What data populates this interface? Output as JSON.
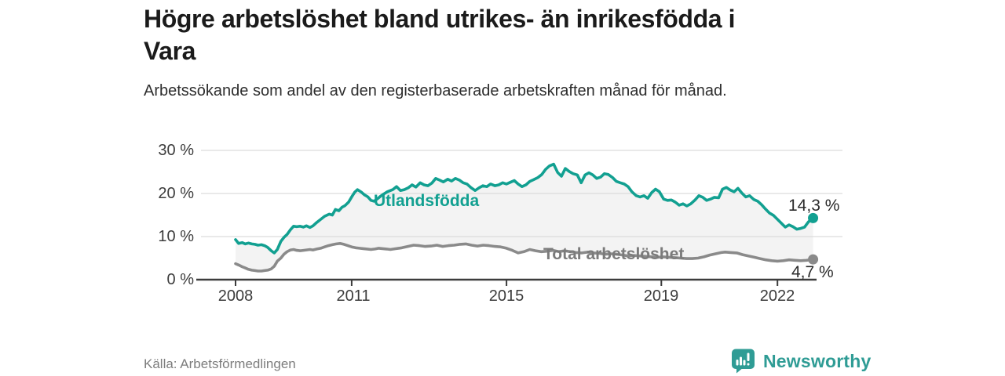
{
  "footer": {
    "source": "Källa: Arbetsförmedlingen"
  },
  "logo": {
    "text": "Newsworthy",
    "color": "#2F9C95",
    "icon": "newsworthy-badge-bar-chart-icon"
  },
  "chart_data": {
    "type": "line",
    "title": "Högre arbetslöshet bland utrikes- än inrikesfödda i Vara",
    "subtitle": "Arbetssökande som andel av den registerbaserade arbetskraften månad för månad.",
    "unit": "%",
    "grid": true,
    "legend_position": "inline-on-lines",
    "colors": {
      "fill_between": "#F3F3F3",
      "grid": "#DCDCDC",
      "axis": "#3C3C3C"
    },
    "x_axis": {
      "range": [
        2008,
        2023
      ],
      "ticks": [
        {
          "label": "2008",
          "value": 2008
        },
        {
          "label": "2011",
          "value": 2011
        },
        {
          "label": "2015",
          "value": 2015
        },
        {
          "label": "2019",
          "value": 2019
        },
        {
          "label": "2022",
          "value": 2022
        }
      ]
    },
    "y_axis": {
      "range": [
        0,
        30
      ],
      "ticks": [
        {
          "label": "30 %",
          "value": 30
        },
        {
          "label": "20 %",
          "value": 20
        },
        {
          "label": "10 %",
          "value": 10
        },
        {
          "label": "0 %",
          "value": 0
        }
      ]
    },
    "series": [
      {
        "name": "Utlandsfödda",
        "color": "#12A091",
        "end_label": "14,3 %",
        "end_value": 14.3,
        "points": [
          [
            2008.0,
            9.3
          ],
          [
            2008.08,
            8.4
          ],
          [
            2008.17,
            8.6
          ],
          [
            2008.25,
            8.3
          ],
          [
            2008.33,
            8.5
          ],
          [
            2008.42,
            8.3
          ],
          [
            2008.5,
            8.2
          ],
          [
            2008.58,
            8.0
          ],
          [
            2008.67,
            8.1
          ],
          [
            2008.75,
            7.9
          ],
          [
            2008.83,
            7.5
          ],
          [
            2008.92,
            6.7
          ],
          [
            2009.0,
            6.2
          ],
          [
            2009.08,
            7.0
          ],
          [
            2009.17,
            8.9
          ],
          [
            2009.25,
            9.8
          ],
          [
            2009.33,
            10.5
          ],
          [
            2009.42,
            11.6
          ],
          [
            2009.5,
            12.4
          ],
          [
            2009.58,
            12.3
          ],
          [
            2009.67,
            12.4
          ],
          [
            2009.75,
            12.2
          ],
          [
            2009.83,
            12.5
          ],
          [
            2009.92,
            12.1
          ],
          [
            2010.0,
            12.5
          ],
          [
            2010.1,
            13.3
          ],
          [
            2010.2,
            14.0
          ],
          [
            2010.3,
            14.7
          ],
          [
            2010.42,
            15.2
          ],
          [
            2010.5,
            15.0
          ],
          [
            2010.58,
            16.3
          ],
          [
            2010.67,
            16.0
          ],
          [
            2010.75,
            16.8
          ],
          [
            2010.83,
            17.2
          ],
          [
            2010.92,
            18.0
          ],
          [
            2011.0,
            19.2
          ],
          [
            2011.08,
            20.3
          ],
          [
            2011.15,
            20.9
          ],
          [
            2011.25,
            20.3
          ],
          [
            2011.33,
            19.7
          ],
          [
            2011.42,
            19.2
          ],
          [
            2011.5,
            18.4
          ],
          [
            2011.58,
            18.2
          ],
          [
            2011.67,
            18.8
          ],
          [
            2011.75,
            19.4
          ],
          [
            2011.83,
            19.9
          ],
          [
            2011.92,
            20.4
          ],
          [
            2012.06,
            20.9
          ],
          [
            2012.16,
            21.6
          ],
          [
            2012.26,
            20.7
          ],
          [
            2012.36,
            20.9
          ],
          [
            2012.46,
            21.3
          ],
          [
            2012.56,
            22.0
          ],
          [
            2012.66,
            21.5
          ],
          [
            2012.77,
            22.5
          ],
          [
            2012.87,
            22.0
          ],
          [
            2012.97,
            21.8
          ],
          [
            2013.07,
            22.4
          ],
          [
            2013.17,
            23.5
          ],
          [
            2013.27,
            23.1
          ],
          [
            2013.37,
            22.7
          ],
          [
            2013.48,
            23.3
          ],
          [
            2013.58,
            22.9
          ],
          [
            2013.68,
            23.5
          ],
          [
            2013.78,
            23.1
          ],
          [
            2013.88,
            22.5
          ],
          [
            2013.98,
            22.2
          ],
          [
            2014.09,
            21.3
          ],
          [
            2014.19,
            20.7
          ],
          [
            2014.29,
            21.3
          ],
          [
            2014.39,
            21.8
          ],
          [
            2014.49,
            21.6
          ],
          [
            2014.59,
            22.2
          ],
          [
            2014.7,
            21.8
          ],
          [
            2014.8,
            22.0
          ],
          [
            2014.9,
            22.5
          ],
          [
            2015.0,
            22.2
          ],
          [
            2015.1,
            22.6
          ],
          [
            2015.2,
            23.0
          ],
          [
            2015.3,
            22.2
          ],
          [
            2015.4,
            21.6
          ],
          [
            2015.5,
            22.0
          ],
          [
            2015.6,
            22.8
          ],
          [
            2015.7,
            23.2
          ],
          [
            2015.81,
            23.7
          ],
          [
            2015.91,
            24.4
          ],
          [
            2016.01,
            25.6
          ],
          [
            2016.11,
            26.4
          ],
          [
            2016.22,
            26.8
          ],
          [
            2016.32,
            24.9
          ],
          [
            2016.42,
            24.0
          ],
          [
            2016.52,
            25.8
          ],
          [
            2016.62,
            25.1
          ],
          [
            2016.72,
            24.6
          ],
          [
            2016.83,
            24.3
          ],
          [
            2016.93,
            22.5
          ],
          [
            2017.03,
            24.3
          ],
          [
            2017.13,
            24.8
          ],
          [
            2017.23,
            24.3
          ],
          [
            2017.33,
            23.5
          ],
          [
            2017.43,
            23.8
          ],
          [
            2017.53,
            24.6
          ],
          [
            2017.63,
            24.4
          ],
          [
            2017.74,
            23.7
          ],
          [
            2017.84,
            22.8
          ],
          [
            2017.94,
            22.5
          ],
          [
            2018.04,
            22.2
          ],
          [
            2018.14,
            21.6
          ],
          [
            2018.24,
            20.4
          ],
          [
            2018.35,
            19.5
          ],
          [
            2018.45,
            19.2
          ],
          [
            2018.55,
            19.5
          ],
          [
            2018.65,
            18.9
          ],
          [
            2018.75,
            20.2
          ],
          [
            2018.85,
            21.0
          ],
          [
            2018.95,
            20.4
          ],
          [
            2019.06,
            18.7
          ],
          [
            2019.16,
            18.4
          ],
          [
            2019.26,
            18.5
          ],
          [
            2019.36,
            18.0
          ],
          [
            2019.46,
            17.3
          ],
          [
            2019.56,
            17.6
          ],
          [
            2019.66,
            17.1
          ],
          [
            2019.76,
            17.6
          ],
          [
            2019.87,
            18.5
          ],
          [
            2019.97,
            19.5
          ],
          [
            2020.07,
            19.1
          ],
          [
            2020.17,
            18.4
          ],
          [
            2020.27,
            18.7
          ],
          [
            2020.37,
            19.1
          ],
          [
            2020.48,
            19.0
          ],
          [
            2020.58,
            21.0
          ],
          [
            2020.68,
            21.4
          ],
          [
            2020.78,
            20.8
          ],
          [
            2020.88,
            20.4
          ],
          [
            2020.98,
            21.2
          ],
          [
            2021.08,
            20.1
          ],
          [
            2021.18,
            19.2
          ],
          [
            2021.28,
            19.5
          ],
          [
            2021.39,
            18.6
          ],
          [
            2021.49,
            18.2
          ],
          [
            2021.59,
            17.4
          ],
          [
            2021.69,
            16.4
          ],
          [
            2021.79,
            15.5
          ],
          [
            2021.9,
            14.9
          ],
          [
            2022.0,
            14.0
          ],
          [
            2022.1,
            13.1
          ],
          [
            2022.2,
            12.2
          ],
          [
            2022.3,
            12.7
          ],
          [
            2022.4,
            12.3
          ],
          [
            2022.5,
            11.7
          ],
          [
            2022.6,
            11.9
          ],
          [
            2022.7,
            12.2
          ],
          [
            2022.8,
            13.4
          ],
          [
            2022.92,
            14.3
          ]
        ]
      },
      {
        "name": "Total arbetslöshet",
        "color": "#8A8A8A",
        "end_label": "4,7 %",
        "end_value": 4.7,
        "points": [
          [
            2008.0,
            3.7
          ],
          [
            2008.08,
            3.4
          ],
          [
            2008.17,
            3.0
          ],
          [
            2008.25,
            2.7
          ],
          [
            2008.33,
            2.4
          ],
          [
            2008.42,
            2.2
          ],
          [
            2008.5,
            2.1
          ],
          [
            2008.58,
            2.0
          ],
          [
            2008.67,
            2.0
          ],
          [
            2008.75,
            2.1
          ],
          [
            2008.83,
            2.2
          ],
          [
            2008.92,
            2.5
          ],
          [
            2009.0,
            3.1
          ],
          [
            2009.08,
            4.3
          ],
          [
            2009.17,
            5.0
          ],
          [
            2009.25,
            5.9
          ],
          [
            2009.33,
            6.5
          ],
          [
            2009.42,
            6.9
          ],
          [
            2009.5,
            7.0
          ],
          [
            2009.58,
            6.8
          ],
          [
            2009.67,
            6.7
          ],
          [
            2009.75,
            6.8
          ],
          [
            2009.83,
            6.9
          ],
          [
            2009.92,
            7.0
          ],
          [
            2010.0,
            6.9
          ],
          [
            2010.1,
            7.1
          ],
          [
            2010.2,
            7.3
          ],
          [
            2010.3,
            7.6
          ],
          [
            2010.4,
            7.9
          ],
          [
            2010.5,
            8.1
          ],
          [
            2010.6,
            8.3
          ],
          [
            2010.7,
            8.4
          ],
          [
            2010.8,
            8.2
          ],
          [
            2010.9,
            7.9
          ],
          [
            2011.0,
            7.6
          ],
          [
            2011.1,
            7.4
          ],
          [
            2011.2,
            7.3
          ],
          [
            2011.3,
            7.2
          ],
          [
            2011.4,
            7.1
          ],
          [
            2011.5,
            7.0
          ],
          [
            2011.6,
            7.1
          ],
          [
            2011.7,
            7.3
          ],
          [
            2011.8,
            7.2
          ],
          [
            2011.9,
            7.1
          ],
          [
            2012.0,
            7.0
          ],
          [
            2012.15,
            7.2
          ],
          [
            2012.3,
            7.4
          ],
          [
            2012.45,
            7.7
          ],
          [
            2012.6,
            8.0
          ],
          [
            2012.75,
            7.9
          ],
          [
            2012.9,
            7.7
          ],
          [
            2013.05,
            7.8
          ],
          [
            2013.2,
            8.0
          ],
          [
            2013.35,
            7.7
          ],
          [
            2013.5,
            7.9
          ],
          [
            2013.65,
            8.0
          ],
          [
            2013.8,
            8.2
          ],
          [
            2013.95,
            8.3
          ],
          [
            2014.1,
            8.0
          ],
          [
            2014.25,
            7.8
          ],
          [
            2014.4,
            8.0
          ],
          [
            2014.55,
            7.9
          ],
          [
            2014.7,
            7.7
          ],
          [
            2014.85,
            7.6
          ],
          [
            2015.0,
            7.3
          ],
          [
            2015.15,
            6.8
          ],
          [
            2015.3,
            6.2
          ],
          [
            2015.45,
            6.5
          ],
          [
            2015.6,
            7.0
          ],
          [
            2015.75,
            6.7
          ],
          [
            2015.9,
            6.5
          ],
          [
            2016.05,
            6.6
          ],
          [
            2016.2,
            6.8
          ],
          [
            2016.35,
            6.5
          ],
          [
            2016.5,
            6.7
          ],
          [
            2016.65,
            6.5
          ],
          [
            2016.8,
            6.3
          ],
          [
            2016.95,
            6.2
          ],
          [
            2017.1,
            6.4
          ],
          [
            2017.25,
            6.2
          ],
          [
            2017.4,
            6.1
          ],
          [
            2017.55,
            5.9
          ],
          [
            2017.7,
            6.0
          ],
          [
            2017.85,
            5.9
          ],
          [
            2018.0,
            5.7
          ],
          [
            2018.15,
            5.5
          ],
          [
            2018.3,
            5.6
          ],
          [
            2018.45,
            5.5
          ],
          [
            2018.6,
            5.4
          ],
          [
            2018.75,
            5.3
          ],
          [
            2018.9,
            5.2
          ],
          [
            2019.05,
            5.3
          ],
          [
            2019.2,
            5.2
          ],
          [
            2019.35,
            5.1
          ],
          [
            2019.5,
            5.0
          ],
          [
            2019.65,
            4.9
          ],
          [
            2019.8,
            4.9
          ],
          [
            2019.95,
            5.0
          ],
          [
            2020.1,
            5.3
          ],
          [
            2020.25,
            5.7
          ],
          [
            2020.4,
            6.0
          ],
          [
            2020.55,
            6.3
          ],
          [
            2020.65,
            6.4
          ],
          [
            2020.8,
            6.3
          ],
          [
            2020.95,
            6.2
          ],
          [
            2021.1,
            5.8
          ],
          [
            2021.25,
            5.5
          ],
          [
            2021.4,
            5.2
          ],
          [
            2021.55,
            4.9
          ],
          [
            2021.7,
            4.6
          ],
          [
            2021.85,
            4.4
          ],
          [
            2022.0,
            4.3
          ],
          [
            2022.15,
            4.4
          ],
          [
            2022.3,
            4.6
          ],
          [
            2022.45,
            4.5
          ],
          [
            2022.6,
            4.4
          ],
          [
            2022.75,
            4.5
          ],
          [
            2022.92,
            4.7
          ]
        ]
      }
    ]
  }
}
